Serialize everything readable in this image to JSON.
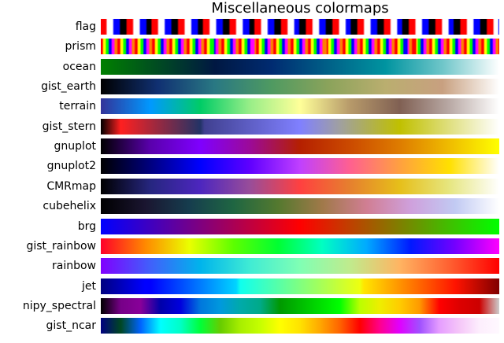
{
  "chart_data": {
    "type": "heatmap",
    "title": "Miscellaneous colormaps",
    "colormaps": [
      {
        "name": "flag"
      },
      {
        "name": "prism"
      },
      {
        "name": "ocean",
        "stops": [
          "#008000",
          "#004b22",
          "#001842",
          "#002b71",
          "#006188",
          "#0094a0",
          "#6fc6c9",
          "#ffffff"
        ]
      },
      {
        "name": "gist_earth",
        "stops": [
          "#000000",
          "#103072",
          "#297883",
          "#4f9a61",
          "#8ba35b",
          "#baae6f",
          "#c8a080",
          "#ffffff"
        ]
      },
      {
        "name": "terrain",
        "stops": [
          "#333399",
          "#0099ff",
          "#00cc66",
          "#99ee88",
          "#ffff99",
          "#b79a6a",
          "#806053",
          "#b9a9a5",
          "#ffffff"
        ]
      },
      {
        "name": "gist_stern",
        "stops": [
          [
            0,
            "#000000"
          ],
          [
            0.05,
            "#ff2020"
          ],
          [
            0.25,
            "#223366"
          ],
          [
            0.26,
            "#404090"
          ],
          [
            0.5,
            "#8080ff"
          ],
          [
            0.6,
            "#a0a0a0"
          ],
          [
            0.75,
            "#c0c000"
          ],
          [
            1,
            "#ffffff"
          ]
        ]
      },
      {
        "name": "gnuplot",
        "stops": [
          "#000000",
          "#5a00ad",
          "#7f00ff",
          "#9c0a97",
          "#b52000",
          "#cb4a00",
          "#de7c00",
          "#efbc00",
          "#ffff00"
        ]
      },
      {
        "name": "gnuplot2",
        "stops": [
          "#000000",
          "#000080",
          "#0000ff",
          "#6000ff",
          "#c040ff",
          "#ff6090",
          "#ffa040",
          "#ffe000",
          "#ffffff"
        ]
      },
      {
        "name": "CMRmap",
        "stops": [
          "#000000",
          "#262680",
          "#4d26bf",
          "#994d99",
          "#ff4040",
          "#e6802e",
          "#e6bf1a",
          "#e6e680",
          "#ffffff"
        ]
      },
      {
        "name": "cubehelix",
        "stops": [
          "#000000",
          "#1a1530",
          "#163d4e",
          "#1f6642",
          "#54792f",
          "#a07949",
          "#d07e93",
          "#cfa0dc",
          "#c1caf3",
          "#ffffff"
        ]
      },
      {
        "name": "brg",
        "stops": [
          "#0000ff",
          "#7f007f",
          "#ff0000",
          "#7f7f00",
          "#00ff00"
        ]
      },
      {
        "name": "gist_rainbow",
        "stops": [
          "#ff0029",
          "#ff8800",
          "#eaff00",
          "#5cff00",
          "#00ff32",
          "#00ffc2",
          "#00aaff",
          "#0019ff",
          "#7400ff",
          "#ff00fe"
        ]
      },
      {
        "name": "rainbow",
        "stops": [
          "#8000ff",
          "#4060fb",
          "#00b4ec",
          "#40ecd4",
          "#80ffb4",
          "#c0eb8d",
          "#ffb462",
          "#ff6031",
          "#ff0000"
        ]
      },
      {
        "name": "jet",
        "stops": [
          [
            0,
            "#000080"
          ],
          [
            0.11,
            "#0000ff"
          ],
          [
            0.125,
            "#0000ff"
          ],
          [
            0.34,
            "#00d4ff"
          ],
          [
            0.35,
            "#0fffee"
          ],
          [
            0.5,
            "#80ff80"
          ],
          [
            0.65,
            "#eeff0f"
          ],
          [
            0.66,
            "#ffe600"
          ],
          [
            0.89,
            "#ff1300"
          ],
          [
            1,
            "#800000"
          ]
        ]
      },
      {
        "name": "nipy_spectral",
        "stops": [
          [
            0,
            "#000000"
          ],
          [
            0.05,
            "#770088"
          ],
          [
            0.1,
            "#880099"
          ],
          [
            0.15,
            "#0000aa"
          ],
          [
            0.2,
            "#0000dd"
          ],
          [
            0.25,
            "#0077dd"
          ],
          [
            0.3,
            "#0099dd"
          ],
          [
            0.35,
            "#00aaaa"
          ],
          [
            0.4,
            "#00aa88"
          ],
          [
            0.45,
            "#009900"
          ],
          [
            0.5,
            "#00bb00"
          ],
          [
            0.55,
            "#00dd00"
          ],
          [
            0.6,
            "#00ff00"
          ],
          [
            0.65,
            "#bbff00"
          ],
          [
            0.7,
            "#eeee00"
          ],
          [
            0.75,
            "#ffcc00"
          ],
          [
            0.8,
            "#ff9900"
          ],
          [
            0.85,
            "#ff0000"
          ],
          [
            0.9,
            "#dd0000"
          ],
          [
            0.95,
            "#cc0000"
          ],
          [
            1,
            "#cccccc"
          ]
        ]
      },
      {
        "name": "gist_ncar",
        "stops": [
          [
            0,
            "#000080"
          ],
          [
            0.05,
            "#004722"
          ],
          [
            0.1,
            "#0063ff"
          ],
          [
            0.15,
            "#00ffff"
          ],
          [
            0.2,
            "#00ffc6"
          ],
          [
            0.25,
            "#00ff38"
          ],
          [
            0.3,
            "#66cc00"
          ],
          [
            0.35,
            "#a8ee00"
          ],
          [
            0.4,
            "#c6ff00"
          ],
          [
            0.45,
            "#ffff00"
          ],
          [
            0.5,
            "#ffe200"
          ],
          [
            0.55,
            "#ffa800"
          ],
          [
            0.6,
            "#ff6300"
          ],
          [
            0.65,
            "#ff0000"
          ],
          [
            0.7,
            "#ff008c"
          ],
          [
            0.75,
            "#e000ff"
          ],
          [
            0.8,
            "#a050ff"
          ],
          [
            0.85,
            "#e69eff"
          ],
          [
            0.9,
            "#f5c6f8"
          ],
          [
            0.95,
            "#fdeefd"
          ],
          [
            1,
            "#fef8fe"
          ]
        ]
      }
    ]
  }
}
